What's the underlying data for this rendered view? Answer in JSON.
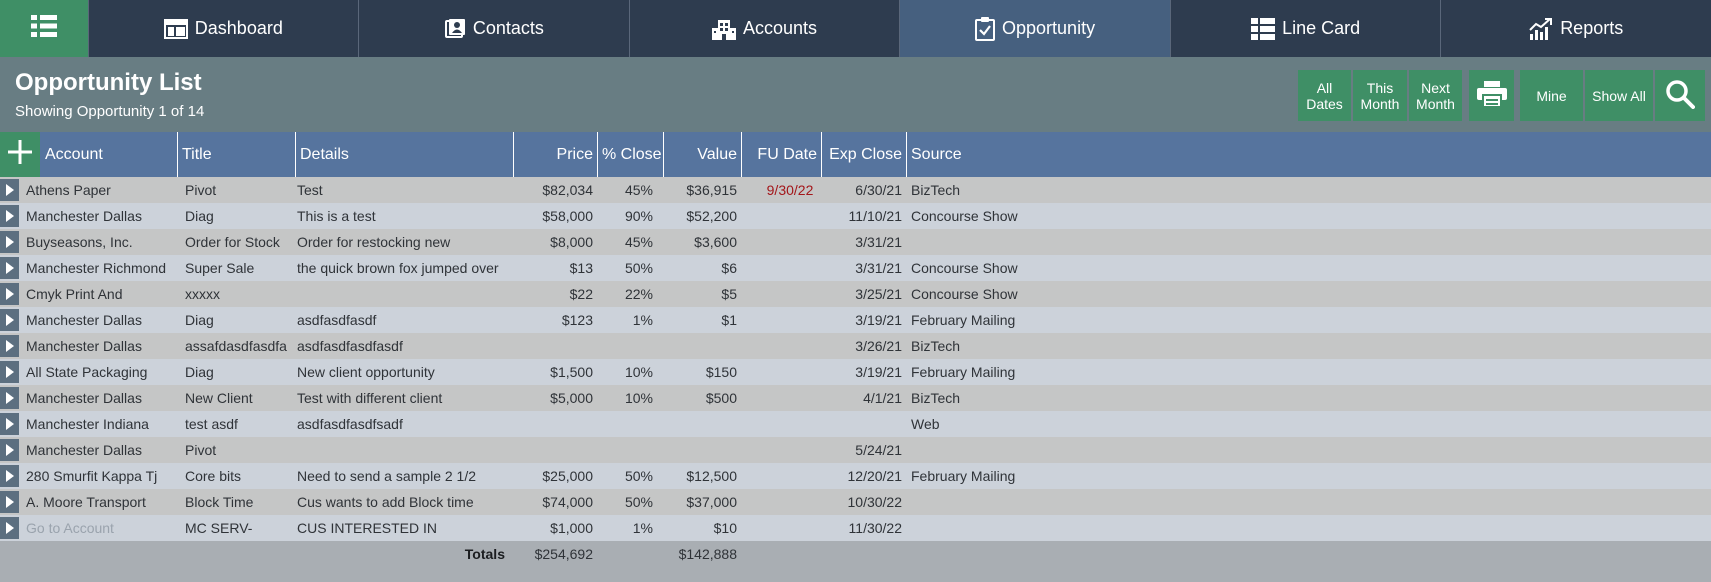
{
  "nav": {
    "menu_icon": "grid-list-icon",
    "tabs": [
      {
        "label": "Dashboard",
        "icon": "dashboard-icon"
      },
      {
        "label": "Contacts",
        "icon": "contacts-icon"
      },
      {
        "label": "Accounts",
        "icon": "building-icon"
      },
      {
        "label": "Opportunity",
        "icon": "clipboard-check-icon",
        "active": true
      },
      {
        "label": "Line Card",
        "icon": "grid-icon"
      },
      {
        "label": "Reports",
        "icon": "chart-trend-icon"
      }
    ]
  },
  "header": {
    "title": "Opportunity List",
    "subtitle": "Showing Opportunity 1 of 14",
    "buttons": {
      "all_dates": "All\nDates",
      "this_month": "This\nMonth",
      "next_month": "Next\nMonth",
      "print_icon": "printer-icon",
      "mine": "Mine",
      "show_all": "Show All",
      "search_icon": "search-icon"
    }
  },
  "table": {
    "add_icon": "plus-icon",
    "columns": {
      "account": "Account",
      "title": "Title",
      "details": "Details",
      "price": "Price",
      "pct_close": "% Close",
      "value": "Value",
      "fu_date": "FU Date",
      "exp_close": "Exp Close",
      "source": "Source"
    },
    "rows": [
      {
        "account": "Athens Paper",
        "title": "Pivot",
        "details": "Test",
        "price": "$82,034",
        "pct": "45%",
        "value": "$36,915",
        "fu": "9/30/22",
        "exp": "6/30/21",
        "source": "BizTech"
      },
      {
        "account": "Manchester Dallas",
        "title": "Diag",
        "details": "This is a test",
        "price": "$58,000",
        "pct": "90%",
        "value": "$52,200",
        "fu": "",
        "exp": "11/10/21",
        "source": "Concourse Show"
      },
      {
        "account": "Buyseasons, Inc.",
        "title": "Order for Stock",
        "details": "Order for restocking new",
        "price": "$8,000",
        "pct": "45%",
        "value": "$3,600",
        "fu": "",
        "exp": "3/31/21",
        "source": ""
      },
      {
        "account": "Manchester Richmond",
        "title": "Super Sale",
        "details": "the quick brown fox jumped over",
        "price": "$13",
        "pct": "50%",
        "value": "$6",
        "fu": "",
        "exp": "3/31/21",
        "source": "Concourse Show"
      },
      {
        "account": "Cmyk Print And",
        "title": "xxxxx",
        "details": "",
        "price": "$22",
        "pct": "22%",
        "value": "$5",
        "fu": "",
        "exp": "3/25/21",
        "source": "Concourse Show"
      },
      {
        "account": "Manchester Dallas",
        "title": "Diag",
        "details": "asdfasdfasdf",
        "price": "$123",
        "pct": "1%",
        "value": "$1",
        "fu": "",
        "exp": "3/19/21",
        "source": "February Mailing"
      },
      {
        "account": "Manchester Dallas",
        "title": "assafdasdfasdfa",
        "details": "asdfasdfasdfasdf",
        "price": "",
        "pct": "",
        "value": "",
        "fu": "",
        "exp": "3/26/21",
        "source": "BizTech"
      },
      {
        "account": "All State Packaging",
        "title": "Diag",
        "details": "New client opportunity",
        "price": "$1,500",
        "pct": "10%",
        "value": "$150",
        "fu": "",
        "exp": "3/19/21",
        "source": "February Mailing"
      },
      {
        "account": "Manchester Dallas",
        "title": "New Client",
        "details": "Test with different client",
        "price": "$5,000",
        "pct": "10%",
        "value": "$500",
        "fu": "",
        "exp": "4/1/21",
        "source": "BizTech"
      },
      {
        "account": "Manchester Indiana",
        "title": "test asdf",
        "details": "asdfasdfasdfsadf",
        "price": "",
        "pct": "",
        "value": "",
        "fu": "",
        "exp": "",
        "source": "Web"
      },
      {
        "account": "Manchester Dallas",
        "title": "Pivot",
        "details": "",
        "price": "",
        "pct": "",
        "value": "",
        "fu": "",
        "exp": "5/24/21",
        "source": ""
      },
      {
        "account": "280 Smurfit Kappa Tj",
        "title": "Core bits",
        "details": "Need to send a sample 2 1/2",
        "price": "$25,000",
        "pct": "50%",
        "value": "$12,500",
        "fu": "",
        "exp": "12/20/21",
        "source": "February Mailing"
      },
      {
        "account": "A. Moore Transport",
        "title": "Block Time",
        "details": "Cus wants to add Block time",
        "price": "$74,000",
        "pct": "50%",
        "value": "$37,000",
        "fu": "",
        "exp": "10/30/22",
        "source": ""
      },
      {
        "account": "Go to Account",
        "title": "MC SERV-",
        "details": "CUS INTERESTED IN",
        "price": "$1,000",
        "pct": "1%",
        "value": "$10",
        "fu": "",
        "exp": "11/30/22",
        "source": "",
        "account_muted": true
      }
    ],
    "totals": {
      "label": "Totals",
      "price": "$254,692",
      "value": "$142,888"
    }
  },
  "colors": {
    "nav_bg": "#2e3c4f",
    "nav_active": "#46607f",
    "accent_green": "#3f8f66",
    "header_bg": "#687d83",
    "table_header": "#56749e",
    "fu_date_red": "#a3161a"
  }
}
